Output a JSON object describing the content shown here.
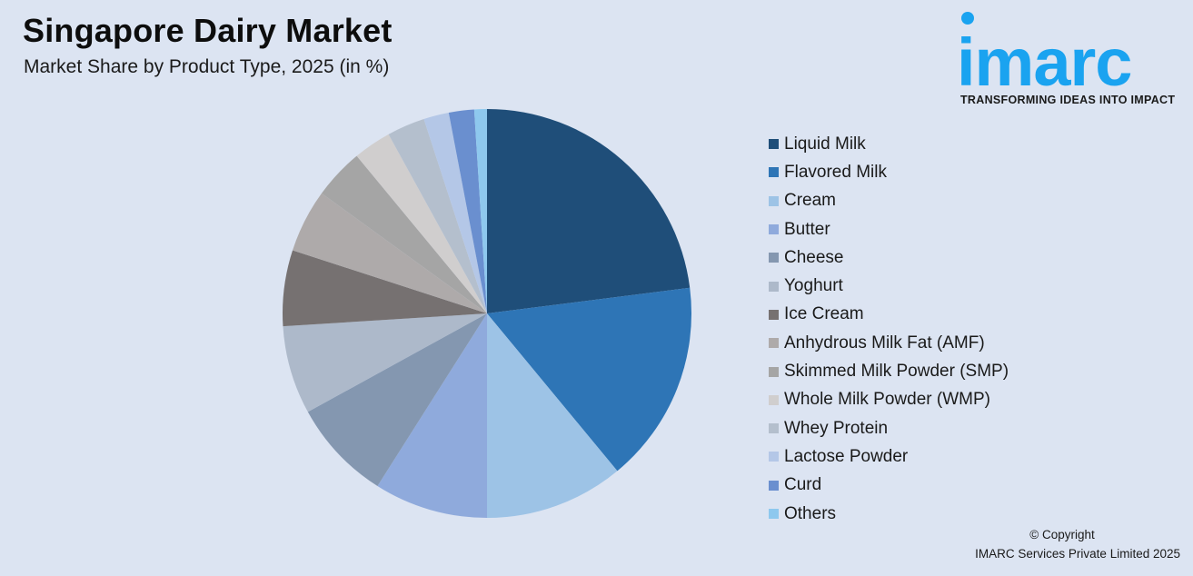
{
  "header": {
    "title": "Singapore Dairy Market",
    "subtitle": "Market Share by Product Type, 2025 (in %)"
  },
  "logo": {
    "wordmark": "imarc",
    "tagline": "TRANSFORMING IDEAS INTO IMPACT",
    "color": "#1aa3f0"
  },
  "footer": {
    "copyright_line1": "© Copyright",
    "copyright_line2": "IMARC Services Private Limited 2025"
  },
  "chart_data": {
    "type": "pie",
    "title": "Singapore Dairy Market",
    "subtitle": "Market Share by Product Type, 2025 (in %)",
    "start_angle_deg": 0,
    "direction": "clockwise",
    "legend_position": "right",
    "categories": [
      "Liquid Milk",
      "Flavored Milk",
      "Cream",
      "Butter",
      "Cheese",
      "Yoghurt",
      "Ice Cream",
      "Anhydrous Milk Fat (AMF)",
      "Skimmed Milk Powder (SMP)",
      "Whole Milk Powder (WMP)",
      "Whey Protein",
      "Lactose Powder",
      "Curd",
      "Others"
    ],
    "values": [
      23,
      16,
      11,
      9,
      8,
      7,
      6,
      5,
      4,
      3,
      3,
      2,
      2,
      1
    ],
    "colors": [
      "#1f4e79",
      "#2e75b6",
      "#9dc3e6",
      "#8faadc",
      "#8497b0",
      "#adb9ca",
      "#767171",
      "#aeaaaa",
      "#a5a5a5",
      "#d0cece",
      "#b4bfcd",
      "#b4c7e7",
      "#6a8fcf",
      "#8ec8ee"
    ]
  }
}
